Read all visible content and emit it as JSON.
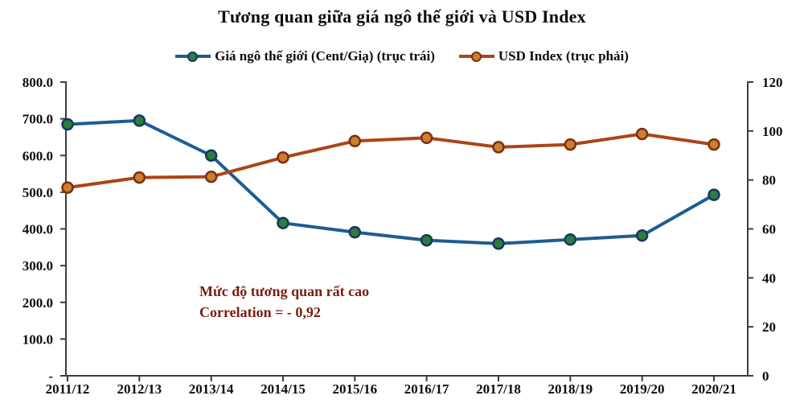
{
  "chart_data": {
    "type": "line",
    "title": "Tương quan giữa giá ngô thế giới và USD Index",
    "categories": [
      "2011/12",
      "2012/13",
      "2013/14",
      "2014/15",
      "2015/16",
      "2016/17",
      "2017/18",
      "2018/19",
      "2019/20",
      "2020/21"
    ],
    "series": [
      {
        "name": "Giá ngô thế giới (Cent/Giạ) (trục trái)",
        "axis": "left",
        "values": [
          685,
          695,
          600,
          416,
          391,
          369,
          360,
          371,
          382,
          493
        ],
        "line_color": "#1c5d94",
        "marker_fill": "#2e7d3c",
        "marker_stroke": "#16395f"
      },
      {
        "name": "USD Index (trục phải)",
        "axis": "right",
        "values": [
          76.9,
          81.0,
          81.3,
          89.2,
          95.9,
          97.2,
          93.4,
          94.5,
          98.8,
          94.5
        ],
        "line_color": "#ab4518",
        "marker_fill": "#cc7f2b",
        "marker_stroke": "#7d2f14"
      }
    ],
    "left_axis": {
      "min": 0,
      "max": 800,
      "tick_values": [
        800,
        700,
        600,
        500,
        400,
        300,
        200,
        100,
        0
      ],
      "tick_labels": [
        "800.0",
        "700.0",
        "600.0",
        "500.0",
        "400.0",
        "300.0",
        "200.0",
        "100.0",
        "-"
      ]
    },
    "right_axis": {
      "min": 0,
      "max": 120,
      "tick_values": [
        120,
        100,
        80,
        60,
        40,
        20,
        0
      ],
      "tick_labels": [
        "120",
        "100",
        "80",
        "60",
        "40",
        "20",
        "0"
      ]
    },
    "annotation": {
      "lines": [
        "Mức độ tương quan rất cao",
        "Correlation = - 0,92"
      ],
      "color": "#7a1d10"
    },
    "legend_position": "top",
    "grid": false,
    "axis_color": "#3c3c3c",
    "text_color": "#0d0d0d",
    "background": "#ffffff"
  }
}
